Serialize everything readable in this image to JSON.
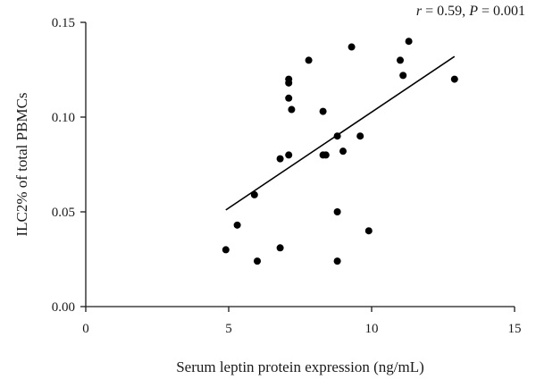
{
  "chart_data": {
    "type": "scatter",
    "xlabel": "Serum leptin protein expression (ng/mL)",
    "ylabel": "ILC2% of total PBMCs",
    "xlim": [
      0,
      15
    ],
    "ylim": [
      0,
      0.15
    ],
    "x_ticks": [
      "0",
      "5",
      "10",
      "15"
    ],
    "y_ticks": [
      "0.00",
      "0.05",
      "0.10",
      "0.15"
    ],
    "annotation": {
      "r_symbol": "r",
      "r_text": " = 0.59, ",
      "p_symbol": "P",
      "p_text": " = 0.001"
    },
    "points": [
      {
        "x": 4.9,
        "y": 0.03
      },
      {
        "x": 5.3,
        "y": 0.043
      },
      {
        "x": 5.9,
        "y": 0.059
      },
      {
        "x": 6.0,
        "y": 0.024
      },
      {
        "x": 6.8,
        "y": 0.078
      },
      {
        "x": 6.8,
        "y": 0.031
      },
      {
        "x": 7.1,
        "y": 0.12
      },
      {
        "x": 7.1,
        "y": 0.118
      },
      {
        "x": 7.1,
        "y": 0.11
      },
      {
        "x": 7.2,
        "y": 0.104
      },
      {
        "x": 7.1,
        "y": 0.08
      },
      {
        "x": 7.8,
        "y": 0.13
      },
      {
        "x": 8.3,
        "y": 0.103
      },
      {
        "x": 8.3,
        "y": 0.08
      },
      {
        "x": 8.4,
        "y": 0.08
      },
      {
        "x": 8.8,
        "y": 0.09
      },
      {
        "x": 8.8,
        "y": 0.05
      },
      {
        "x": 8.8,
        "y": 0.024
      },
      {
        "x": 9.0,
        "y": 0.082
      },
      {
        "x": 9.3,
        "y": 0.137
      },
      {
        "x": 9.6,
        "y": 0.09
      },
      {
        "x": 9.9,
        "y": 0.04
      },
      {
        "x": 11.0,
        "y": 0.13
      },
      {
        "x": 11.1,
        "y": 0.122
      },
      {
        "x": 11.3,
        "y": 0.14
      },
      {
        "x": 12.9,
        "y": 0.12
      }
    ],
    "trend_line": {
      "x": [
        4.9,
        12.9
      ],
      "y": [
        0.051,
        0.132
      ]
    },
    "grid": false,
    "legend": "none"
  }
}
